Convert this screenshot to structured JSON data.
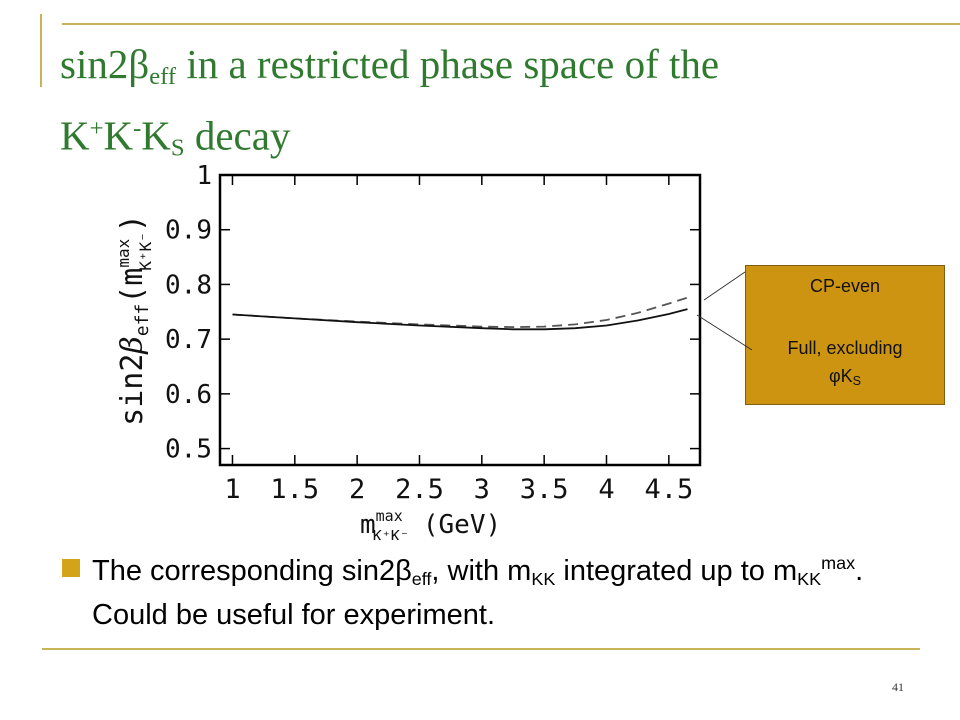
{
  "slide": {
    "title": {
      "t1": "sin2",
      "t2": "β",
      "t3": "eff",
      "t4": " in a restricted phase space of the",
      "t5": "K",
      "t6": "+",
      "t7": "K",
      "t8": "-",
      "t9": "K",
      "t10": "S",
      "t11": " decay"
    },
    "body": {
      "b1": "The corresponding sin2",
      "b2": "β",
      "b3": "eff",
      "b4": ", with m",
      "b5": "KK",
      "b6": " integrated up to m",
      "b7": "KK",
      "b8": "max",
      "b9": ". Could be useful for experiment."
    },
    "callout": {
      "line1": "CP-even",
      "line2": "Full, excluding",
      "line3a": "φK",
      "line3b": "S"
    },
    "page_number": "41"
  },
  "chart_data": {
    "type": "line",
    "ylabel": "sin2βeff(m^max_K+K-)",
    "xlabel": "m^max_K+K- (GeV)",
    "xlim": [
      0.9,
      4.75
    ],
    "ylim": [
      0.47,
      1.0
    ],
    "x_ticks": [
      1,
      1.5,
      2,
      2.5,
      3,
      3.5,
      4,
      4.5
    ],
    "y_ticks": [
      0.5,
      0.6,
      0.7,
      0.8,
      0.9,
      1
    ],
    "x_tick_labels": [
      "1",
      "1.5",
      "2",
      "2.5",
      "3",
      "3.5",
      "4",
      "4.5"
    ],
    "y_tick_labels": [
      "0.5",
      "0.6",
      "0.7",
      "0.8",
      "0.9",
      "1"
    ],
    "grid": false,
    "series": [
      {
        "style": "dashed",
        "x": [
          1.0,
          1.5,
          2.0,
          2.5,
          3.0,
          3.25,
          3.5,
          3.75,
          4.0,
          4.25,
          4.5,
          4.65
        ],
        "y": [
          0.745,
          0.738,
          0.732,
          0.727,
          0.723,
          0.722,
          0.723,
          0.727,
          0.735,
          0.748,
          0.765,
          0.776
        ]
      },
      {
        "style": "solid",
        "x": [
          1.0,
          1.5,
          2.0,
          2.5,
          3.0,
          3.25,
          3.5,
          3.75,
          4.0,
          4.25,
          4.5,
          4.65
        ],
        "y": [
          0.745,
          0.738,
          0.731,
          0.725,
          0.72,
          0.718,
          0.718,
          0.72,
          0.725,
          0.734,
          0.746,
          0.755
        ]
      }
    ]
  }
}
